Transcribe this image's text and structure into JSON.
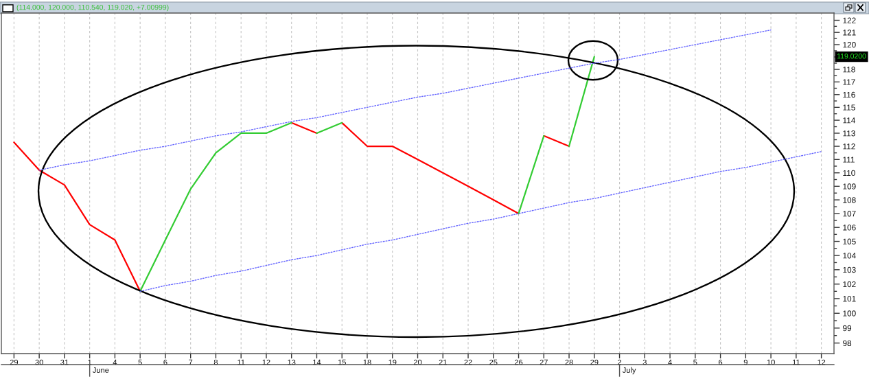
{
  "chart_data": {
    "type": "line",
    "title": "(114.000, 120.000, 110.540, 119.020, +7.00999)",
    "log": true,
    "grid": "x",
    "categories": [
      "29",
      "30",
      "31",
      "1",
      "4",
      "5",
      "6",
      "7",
      "8",
      "11",
      "12",
      "13",
      "14",
      "15",
      "18",
      "19",
      "20",
      "21",
      "22",
      "25",
      "26",
      "27",
      "28",
      "29",
      "2",
      "3",
      "4",
      "5",
      "6",
      "9",
      "10",
      "11",
      "12"
    ],
    "ylim": [
      97.3,
      122.6
    ],
    "yticks": [
      98,
      {
        "value": 98.5,
        "label": null
      },
      99,
      {
        "value": 99.5,
        "label": null
      },
      100,
      {
        "value": 100.5,
        "label": null
      },
      101,
      {
        "value": 101.5,
        "label": null
      },
      102,
      {
        "value": 102.5,
        "label": null
      },
      103,
      {
        "value": 103.5,
        "label": null
      },
      104,
      {
        "value": 104.5,
        "label": null
      },
      105,
      {
        "value": 105.5,
        "label": null
      },
      106,
      {
        "value": 106.5,
        "label": null
      },
      107,
      {
        "value": 107.5,
        "label": null
      },
      108,
      {
        "value": 108.5,
        "label": null
      },
      109,
      {
        "value": 109.5,
        "label": null
      },
      110,
      {
        "value": 110.5,
        "label": null
      },
      111,
      {
        "value": 111.5,
        "label": null
      },
      112,
      {
        "value": 112.5,
        "label": null
      },
      113,
      {
        "value": 113.5,
        "label": null
      },
      114,
      {
        "value": 114.5,
        "label": null
      },
      115,
      {
        "value": 115.5,
        "label": null
      },
      116,
      {
        "value": 116.5,
        "label": null
      },
      117,
      {
        "value": 117.5,
        "label": null
      },
      118,
      {
        "value": 118.5,
        "label": null
      },
      {
        "value": 119,
        "label": null
      },
      {
        "value": 119.5,
        "label": null
      },
      120,
      {
        "value": 120.5,
        "label": null
      },
      121,
      {
        "value": 121.5,
        "label": null
      },
      122
    ],
    "series": [
      {
        "color": "#ff0000",
        "line_style": "solid",
        "values": [
          112.3,
          110.2,
          109.1,
          106.2,
          105.1,
          101.5,
          null,
          null,
          null,
          null,
          null,
          null,
          null,
          113.8,
          112.0,
          112.0,
          111.0,
          110.0,
          109.0,
          108.0,
          107.0,
          null,
          null,
          null,
          null,
          null,
          null,
          null,
          null,
          null,
          null,
          null,
          null
        ]
      },
      {
        "color": "#ff0000",
        "line_style": "solid",
        "values": [
          null,
          null,
          null,
          null,
          null,
          null,
          null,
          null,
          null,
          null,
          null,
          113.8,
          113.0,
          null,
          null,
          null,
          null,
          null,
          null,
          null,
          null,
          112.8,
          112.0,
          null,
          null,
          null,
          null,
          null,
          null,
          null,
          null,
          null,
          null
        ]
      },
      {
        "color": "#33cc33",
        "line_style": "solid",
        "values": [
          null,
          null,
          null,
          null,
          null,
          101.5,
          105.1,
          108.8,
          111.5,
          113.0,
          113.0,
          113.8,
          null,
          null,
          null,
          null,
          null,
          null,
          null,
          null,
          107.0,
          112.8,
          null,
          null,
          null,
          null,
          null,
          null,
          null,
          null,
          null,
          null,
          null
        ]
      },
      {
        "color": "#33cc33",
        "line_style": "solid",
        "values": [
          null,
          null,
          null,
          null,
          null,
          null,
          null,
          null,
          null,
          null,
          null,
          null,
          113.0,
          113.8,
          null,
          null,
          null,
          null,
          null,
          null,
          null,
          null,
          112.0,
          119.02,
          null,
          null,
          null,
          null,
          null,
          null,
          null,
          null,
          null
        ]
      },
      {
        "color": "#6666ff",
        "line_style": "dotted",
        "values": [
          null,
          110.2,
          110.6,
          110.9,
          111.3,
          111.7,
          112.0,
          112.4,
          112.8,
          113.1,
          113.5,
          113.9,
          114.2,
          114.6,
          115.0,
          115.4,
          115.8,
          116.1,
          116.5,
          116.9,
          117.3,
          117.7,
          118.1,
          118.5,
          118.8,
          119.2,
          119.6,
          120.0,
          120.4,
          120.8,
          121.2,
          null,
          null
        ]
      },
      {
        "color": "#6666ff",
        "line_style": "dotted",
        "values": [
          null,
          null,
          null,
          null,
          null,
          101.5,
          101.9,
          102.2,
          102.6,
          102.9,
          103.3,
          103.7,
          104.0,
          104.4,
          104.8,
          105.1,
          105.5,
          105.9,
          106.3,
          106.6,
          107.0,
          107.4,
          107.8,
          108.1,
          108.5,
          108.9,
          109.3,
          109.7,
          110.1,
          110.4,
          110.8,
          111.2,
          111.6
        ]
      }
    ],
    "annotations": [
      "June",
      "July",
      "119.0200"
    ]
  }
}
